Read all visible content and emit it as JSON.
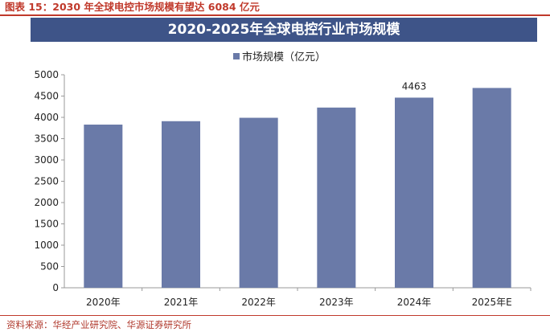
{
  "figure_title": "图表 15：2030 年全球电控市场规模有望达 6084 亿元",
  "source": "资料来源：华经产业研究院、华源证券研究所",
  "colors": {
    "bar": "#6a7aa8",
    "banner": "#3e5488",
    "accent": "#c0392b"
  },
  "chart_data": {
    "type": "bar",
    "title": "2020-2025年全球电控行业市场规模",
    "categories": [
      "2020年",
      "2021年",
      "2022年",
      "2023年",
      "2024年",
      "2025年E"
    ],
    "series": [
      {
        "name": "市场规模（亿元）",
        "values": [
          3830,
          3910,
          3990,
          4230,
          4463,
          4690
        ]
      }
    ],
    "data_labels": [
      null,
      null,
      null,
      null,
      "4463",
      null
    ],
    "yticks": [
      "0",
      "500",
      "1000",
      "1500",
      "2000",
      "2500",
      "3000",
      "3500",
      "4000",
      "4500",
      "5000"
    ],
    "ylim": [
      0,
      5000
    ],
    "xlabel": "",
    "ylabel": "",
    "grid": false,
    "legend_position": "top-center"
  }
}
